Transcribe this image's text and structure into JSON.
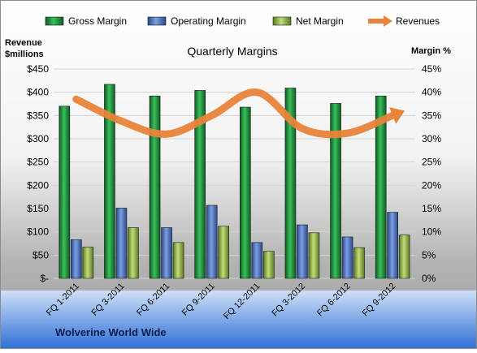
{
  "chart_data": {
    "type": "bar",
    "title": "Quarterly Margins",
    "left_axis_label_line1": "Revenue",
    "left_axis_label_line2": "$millions",
    "right_axis_label": "Margin %",
    "company": "Wolverine World Wide",
    "categories": [
      "FQ 1-2011",
      "FQ 3-2011",
      "FQ 6-2011",
      "FQ 9-2011",
      "FQ 12-2011",
      "FQ 3-2012",
      "FQ 6-2012",
      "FQ 9-2012"
    ],
    "left_ylim": [
      0,
      450
    ],
    "left_ticks": [
      "$-",
      "$50",
      "$100",
      "$150",
      "$200",
      "$250",
      "$300",
      "$350",
      "$400",
      "$450"
    ],
    "right_ylim": [
      0,
      45
    ],
    "right_ticks": [
      "0%",
      "5%",
      "10%",
      "15%",
      "20%",
      "25%",
      "30%",
      "35%",
      "40%",
      "45%"
    ],
    "series": [
      {
        "name": "Gross Margin",
        "axis": "right",
        "kind": "bar",
        "color": "#1f8a3a",
        "values": [
          37.0,
          41.7,
          39.2,
          40.4,
          36.8,
          40.9,
          37.6,
          39.2
        ]
      },
      {
        "name": "Operating Margin",
        "axis": "right",
        "kind": "bar",
        "color": "#4a6fb5",
        "values": [
          8.3,
          15.1,
          10.9,
          15.7,
          7.7,
          11.5,
          8.9,
          14.2
        ]
      },
      {
        "name": "Net Margin",
        "axis": "right",
        "kind": "bar",
        "color": "#8aa84a",
        "values": [
          6.7,
          10.9,
          7.7,
          11.2,
          5.8,
          9.8,
          6.6,
          9.3
        ]
      },
      {
        "name": "Revenues",
        "axis": "left",
        "kind": "line",
        "color": "#e8843a",
        "values": [
          385,
          338,
          310,
          350,
          400,
          322,
          312,
          350
        ]
      }
    ],
    "legend": "top",
    "grid": true
  }
}
